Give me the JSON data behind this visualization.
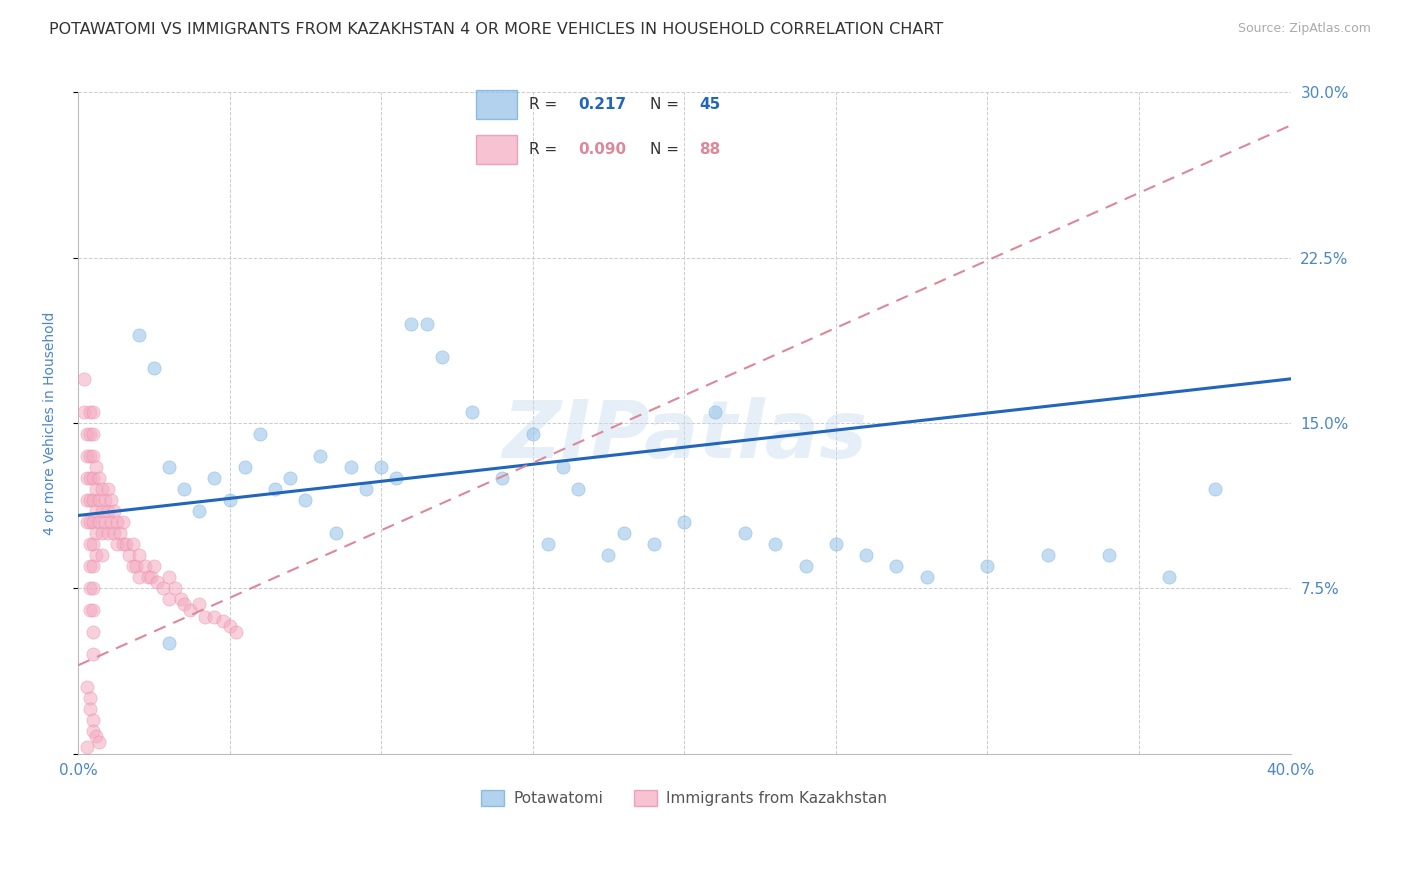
{
  "title": "POTAWATOMI VS IMMIGRANTS FROM KAZAKHSTAN 4 OR MORE VEHICLES IN HOUSEHOLD CORRELATION CHART",
  "source": "Source: ZipAtlas.com",
  "ylabel": "4 or more Vehicles in Household",
  "xlim": [
    0.0,
    0.4
  ],
  "ylim": [
    0.0,
    0.3
  ],
  "yticks": [
    0.0,
    0.075,
    0.15,
    0.225,
    0.3
  ],
  "ytick_labels_right": [
    "",
    "7.5%",
    "15.0%",
    "22.5%",
    "30.0%"
  ],
  "xticks": [
    0.0,
    0.05,
    0.1,
    0.15,
    0.2,
    0.25,
    0.3,
    0.35,
    0.4
  ],
  "xtick_labels": [
    "0.0%",
    "",
    "",
    "",
    "",
    "",
    "",
    "",
    "40.0%"
  ],
  "blue_R": 0.217,
  "blue_N": 45,
  "pink_R": 0.09,
  "pink_N": 88,
  "blue_color": "#92c0e8",
  "pink_color": "#f4aac0",
  "blue_edge_color": "#6aaad8",
  "pink_edge_color": "#e888a8",
  "blue_line_color": "#2266bb",
  "pink_line_color": "#dd8899",
  "watermark": "ZIPatlas",
  "legend_label_blue": "Potawatomi",
  "legend_label_pink": "Immigrants from Kazakhstan",
  "blue_trend_y_start": 0.108,
  "blue_trend_y_end": 0.17,
  "pink_trend_y_start": 0.04,
  "pink_trend_y_end": 0.285,
  "background_color": "#ffffff",
  "grid_color": "#cccccc",
  "axis_label_color": "#4a86c8",
  "tick_label_color": "#4a86c8",
  "title_color": "#333333",
  "title_fontsize": 11.5,
  "axis_label_fontsize": 10,
  "tick_fontsize": 11,
  "marker_size": 90,
  "marker_alpha": 0.55
}
